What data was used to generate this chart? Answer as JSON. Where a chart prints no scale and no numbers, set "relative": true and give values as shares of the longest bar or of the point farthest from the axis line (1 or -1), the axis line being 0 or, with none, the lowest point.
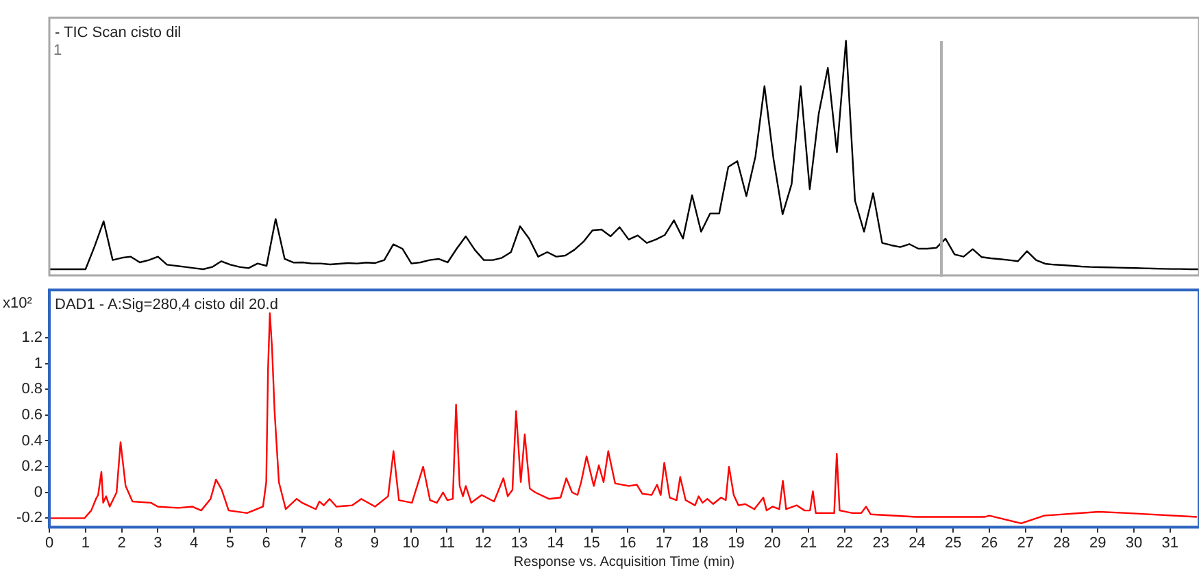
{
  "chart_data": [
    {
      "type": "line",
      "title": "- TIC Scan cisto dil",
      "annotations": [
        "1"
      ],
      "relative": true,
      "grid": false,
      "legend": false,
      "marker": "none",
      "color": "#000000",
      "categories": [
        null,
        null,
        null,
        null,
        null,
        null,
        null,
        null,
        null,
        null,
        null,
        null,
        null,
        null,
        null,
        null,
        null,
        null,
        null,
        null,
        null,
        null,
        null,
        null,
        null,
        null,
        null,
        null,
        null,
        null,
        null,
        null,
        null,
        null,
        null,
        null,
        null,
        null,
        null,
        null,
        null,
        null,
        null,
        null,
        null,
        null,
        null,
        null,
        null,
        null,
        null,
        null,
        null,
        null,
        null,
        null,
        null,
        null,
        null,
        null,
        null,
        null,
        null,
        null,
        null,
        null,
        null,
        null,
        null,
        null,
        null,
        null,
        null,
        null,
        null,
        null,
        null,
        null,
        null,
        null,
        null,
        null,
        null,
        null,
        null,
        null,
        null,
        null,
        null,
        null,
        null,
        null,
        null,
        null,
        null,
        null,
        null,
        null,
        null,
        null,
        null,
        null,
        null,
        null,
        null,
        null,
        null,
        null,
        null,
        null,
        null,
        null,
        null,
        null,
        null,
        null,
        null,
        null,
        null,
        null,
        null,
        null,
        null,
        null,
        null,
        null,
        null,
        null
      ],
      "values": [
        0,
        0,
        0,
        0,
        0,
        0.1,
        0.21,
        0.04,
        0.05,
        0.055,
        0.03,
        0.04,
        0.055,
        0.02,
        0.015,
        0.01,
        0.005,
        0,
        0.01,
        0.035,
        0.02,
        0.01,
        0.005,
        0.025,
        0.015,
        0.22,
        0.045,
        0.029,
        0.03,
        0.025,
        0.025,
        0.021,
        0.024,
        0.027,
        0.025,
        0.029,
        0.027,
        0.04,
        0.109,
        0.09,
        0.025,
        0.03,
        0.04,
        0.045,
        0.03,
        0.09,
        0.144,
        0.085,
        0.04,
        0.04,
        0.05,
        0.075,
        0.188,
        0.134,
        0.055,
        0.075,
        0.055,
        0.06,
        0.085,
        0.12,
        0.17,
        0.174,
        0.144,
        0.184,
        0.13,
        0.148,
        0.115,
        0.13,
        0.15,
        0.214,
        0.134,
        0.324,
        0.164,
        0.244,
        0.244,
        0.447,
        0.473,
        0.32,
        0.493,
        0.801,
        0.482,
        0.24,
        0.373,
        0.801,
        0.35,
        0.682,
        0.881,
        0.512,
        1,
        0.3,
        0.164,
        0.333,
        0.115,
        0.105,
        0.097,
        0.11,
        0.09,
        0.09,
        0.094,
        0.134,
        0.065,
        0.055,
        0.088,
        0.053,
        0.048,
        0.044,
        0.04,
        0.035,
        0.079,
        0.04,
        0.024,
        0.02,
        0.018,
        0.015,
        0.012,
        0.01,
        0.009,
        0.008,
        0.007,
        0.006,
        0.005,
        0.004,
        0.003,
        0.002,
        0.001,
        0.001,
        0,
        0
      ]
    },
    {
      "type": "line",
      "title": "DAD1 - A:Sig=280,4 cisto dil 20.d",
      "ylabel": "x10²",
      "xlabel": "Response vs. Acquisition Time (min)",
      "grid": false,
      "legend": false,
      "marker": "none",
      "color": "#ff0000",
      "xlim": [
        0,
        31.8
      ],
      "ylim": [
        -0.27,
        1.57
      ],
      "xticks": [
        0,
        1,
        2,
        3,
        4,
        5,
        6,
        7,
        8,
        9,
        10,
        11,
        12,
        13,
        14,
        15,
        16,
        17,
        18,
        19,
        20,
        21,
        22,
        23,
        24,
        25,
        26,
        27,
        28,
        29,
        30,
        31
      ],
      "yticks": [
        -0.2,
        0,
        0.2,
        0.4,
        0.6,
        0.8,
        1,
        1.2
      ],
      "x": [
        0,
        0.97,
        1.16,
        1.29,
        1.35,
        1.44,
        1.49,
        1.57,
        1.67,
        1.86,
        1.97,
        2.11,
        2.3,
        2.81,
        3,
        3.57,
        3.95,
        4.2,
        4.46,
        4.61,
        4.77,
        4.96,
        5.47,
        5.91,
        6,
        6.05,
        6.1,
        6.16,
        6.23,
        6.35,
        6.54,
        6.84,
        6.99,
        7.37,
        7.47,
        7.59,
        7.75,
        7.94,
        8.38,
        8.63,
        9.01,
        9.37,
        9.52,
        9.67,
        10.03,
        10.34,
        10.53,
        10.72,
        10.89,
        11.01,
        11.16,
        11.25,
        11.35,
        11.44,
        11.52,
        11.67,
        11.96,
        12.3,
        12.56,
        12.68,
        12.81,
        12.91,
        13.04,
        13.15,
        13.29,
        13.44,
        13.82,
        14.14,
        14.3,
        14.46,
        14.61,
        14.71,
        14.86,
        15.06,
        15.2,
        15.33,
        15.46,
        15.65,
        16.03,
        16.25,
        16.4,
        16.66,
        16.81,
        16.91,
        17.01,
        17.16,
        17.35,
        17.45,
        17.6,
        17.86,
        17.96,
        18.07,
        18.2,
        18.36,
        18.58,
        18.71,
        18.8,
        18.93,
        19.06,
        19.25,
        19.5,
        19.75,
        19.84,
        20,
        20.19,
        20.29,
        20.38,
        20.67,
        20.89,
        21.04,
        21.12,
        21.2,
        21.71,
        21.78,
        21.86,
        22.21,
        22.46,
        22.59,
        22.72,
        23.98,
        25.87,
        26,
        26.88,
        27.52,
        29.03,
        29.79,
        31.74
      ],
      "values": [
        -0.2,
        -0.2,
        -0.14,
        -0.05,
        -0.02,
        0.16,
        -0.08,
        -0.03,
        -0.11,
        0,
        0.39,
        0.05,
        -0.07,
        -0.08,
        -0.11,
        -0.12,
        -0.11,
        -0.14,
        -0.05,
        0.1,
        0.02,
        -0.14,
        -0.16,
        -0.11,
        0.08,
        0.96,
        1.39,
        1.12,
        0.63,
        0.08,
        -0.13,
        -0.05,
        -0.08,
        -0.13,
        -0.07,
        -0.1,
        -0.05,
        -0.11,
        -0.1,
        -0.05,
        -0.11,
        -0.03,
        0.32,
        -0.06,
        -0.08,
        0.2,
        -0.06,
        -0.08,
        0,
        -0.06,
        -0.05,
        0.68,
        0.05,
        -0.03,
        0.05,
        -0.08,
        -0.02,
        -0.07,
        0.11,
        -0.03,
        0.02,
        0.63,
        0.08,
        0.45,
        0.03,
        0,
        -0.05,
        -0.04,
        0.11,
        0,
        -0.02,
        0.08,
        0.28,
        0.05,
        0.21,
        0.08,
        0.32,
        0.07,
        0.05,
        0.06,
        -0.01,
        -0.02,
        0.06,
        -0.02,
        0.23,
        -0.04,
        -0.06,
        0.12,
        -0.06,
        -0.1,
        -0.03,
        -0.08,
        -0.05,
        -0.09,
        -0.04,
        -0.06,
        0.2,
        -0.02,
        -0.1,
        -0.09,
        -0.13,
        -0.04,
        -0.14,
        -0.11,
        -0.13,
        0.09,
        -0.13,
        -0.1,
        -0.14,
        -0.14,
        0.01,
        -0.16,
        -0.16,
        0.3,
        -0.14,
        -0.16,
        -0.16,
        -0.11,
        -0.17,
        -0.19,
        -0.19,
        -0.18,
        -0.24,
        -0.18,
        -0.15,
        -0.16,
        -0.19
      ]
    }
  ]
}
